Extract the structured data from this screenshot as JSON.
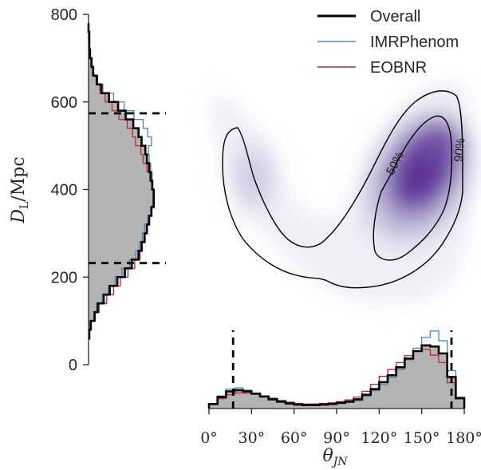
{
  "chart_data": [
    {
      "panel": "left_marginal",
      "type": "histogram",
      "orientation": "horizontal",
      "ylabel": "D_L/Mpc",
      "ylim": [
        0,
        800
      ],
      "yticks": [
        "0",
        "200",
        "400",
        "600",
        "800"
      ],
      "grid": false,
      "quantile_lines": [
        232,
        574
      ],
      "bin_edges": [
        60,
        80,
        100,
        120,
        140,
        160,
        180,
        200,
        220,
        240,
        260,
        280,
        300,
        320,
        340,
        360,
        380,
        400,
        420,
        440,
        460,
        480,
        500,
        520,
        540,
        560,
        580,
        600,
        620,
        640,
        660,
        680,
        700,
        720,
        740,
        760,
        780,
        800
      ],
      "series": [
        {
          "name": "Overall",
          "color": "#000000",
          "values": [
            1,
            3,
            8,
            12,
            20,
            28,
            38,
            48,
            57,
            66,
            70,
            74,
            77,
            80,
            83,
            86,
            86,
            84,
            82,
            80,
            77,
            75,
            70,
            66,
            59,
            49,
            39,
            27,
            17,
            11,
            6,
            4,
            2,
            1,
            1,
            0
          ]
        },
        {
          "name": "IMRPhenom",
          "color": "#4b89c1",
          "values": [
            1,
            3,
            7,
            11,
            18,
            26,
            35,
            44,
            54,
            62,
            67,
            71,
            74,
            78,
            82,
            85,
            86,
            85,
            84,
            82,
            80,
            79,
            83,
            78,
            72,
            60,
            47,
            33,
            19,
            12,
            7,
            4,
            2,
            1,
            1,
            0
          ]
        },
        {
          "name": "EOBNR",
          "color": "#c0262d",
          "values": [
            1,
            2,
            7,
            14,
            24,
            33,
            42,
            52,
            61,
            68,
            71,
            74,
            77,
            80,
            83,
            86,
            86,
            84,
            81,
            77,
            72,
            69,
            62,
            58,
            51,
            40,
            31,
            22,
            15,
            10,
            6,
            3,
            2,
            1,
            0,
            0
          ]
        }
      ]
    },
    {
      "panel": "bottom_marginal",
      "type": "histogram",
      "xlabel": "θ_JN",
      "xlim": [
        0,
        180
      ],
      "xticks": [
        "0°",
        "30°",
        "60°",
        "90°",
        "120°",
        "150°",
        "180°"
      ],
      "grid": false,
      "quantile_lines": [
        17,
        171
      ],
      "bin_edges": [
        0,
        6,
        12,
        18,
        24,
        30,
        36,
        42,
        48,
        54,
        60,
        66,
        72,
        78,
        84,
        90,
        96,
        102,
        108,
        114,
        120,
        126,
        132,
        138,
        144,
        150,
        156,
        162,
        168,
        174,
        180
      ],
      "series": [
        {
          "name": "Overall",
          "color": "#000000",
          "values": [
            8,
            20,
            30,
            32,
            30,
            26,
            21,
            16,
            12,
            9,
            7,
            6,
            6,
            7,
            8,
            10,
            12,
            16,
            24,
            34,
            46,
            58,
            72,
            87,
            100,
            110,
            108,
            96,
            55,
            18
          ]
        },
        {
          "name": "IMRPhenom",
          "color": "#4b89c1",
          "values": [
            8,
            22,
            34,
            36,
            32,
            26,
            20,
            15,
            11,
            8,
            6,
            5,
            5,
            6,
            7,
            9,
            11,
            14,
            21,
            31,
            42,
            54,
            68,
            85,
            105,
            124,
            135,
            118,
            66,
            20
          ]
        },
        {
          "name": "EOBNR",
          "color": "#c0262d",
          "values": [
            7,
            17,
            24,
            27,
            27,
            25,
            22,
            18,
            14,
            11,
            9,
            8,
            8,
            9,
            10,
            12,
            15,
            20,
            30,
            42,
            56,
            68,
            80,
            92,
            100,
            103,
            93,
            80,
            45,
            18
          ]
        }
      ]
    },
    {
      "panel": "joint_density",
      "type": "heatmap",
      "colormap": "purples",
      "xlim": [
        0,
        180
      ],
      "ylim": [
        0,
        800
      ],
      "contour_levels": [
        "50%",
        "90%"
      ],
      "modes": [
        {
          "theta_jn_deg": 155,
          "dl_mpc": 470
        },
        {
          "theta_jn_deg": 25,
          "dl_mpc": 430
        }
      ]
    }
  ],
  "legend": {
    "placement": "top-right",
    "items": [
      {
        "label": "Overall",
        "color": "#000000"
      },
      {
        "label": "IMRPhenom",
        "color": "#4b89c1"
      },
      {
        "label": "EOBNR",
        "color": "#c0262d"
      }
    ]
  },
  "axis_titles": {
    "y_main": "D",
    "y_sub": "L",
    "y_tail": "/Mpc",
    "x_main": "θ",
    "x_sub": "JN"
  },
  "contour_labels": {
    "inner": "50%",
    "outer": "90%"
  },
  "colors": {
    "fill": "#b4b4b4",
    "density_dark": "#4a1486",
    "density_light": "#efedf5"
  }
}
